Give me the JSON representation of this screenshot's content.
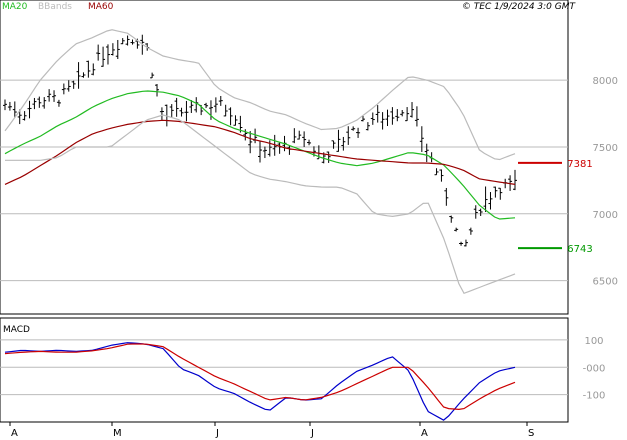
{
  "header": {
    "legend": [
      {
        "label": "MA20",
        "color": "#22bb22"
      },
      {
        "label": "BBands",
        "color": "#bbbbbb"
      },
      {
        "label": "MA60",
        "color": "#990000"
      }
    ],
    "copyright": "© TEC 1/9/2024 3:0 GMT"
  },
  "chart_data": [
    {
      "type": "line",
      "subtype": "ohlc-bar",
      "title": "",
      "x_labels": [
        "A",
        "M",
        "J",
        "J",
        "A",
        "S"
      ],
      "y_ticks": [
        6500,
        7000,
        7500,
        8000
      ],
      "ylim": [
        6250,
        8600
      ],
      "grid": true,
      "series": [
        {
          "name": "MA20",
          "color": "#22bb22",
          "values": [
            7450,
            7520,
            7580,
            7660,
            7720,
            7800,
            7860,
            7900,
            7920,
            7910,
            7880,
            7820,
            7700,
            7640,
            7600,
            7560,
            7520,
            7470,
            7420,
            7380,
            7360,
            7380,
            7420,
            7460,
            7440,
            7360,
            7220,
            7060,
            6960,
            6970
          ]
        },
        {
          "name": "MA60",
          "color": "#990000",
          "values": [
            7220,
            7280,
            7360,
            7440,
            7530,
            7600,
            7640,
            7670,
            7690,
            7700,
            7690,
            7670,
            7650,
            7610,
            7560,
            7530,
            7490,
            7470,
            7450,
            7430,
            7410,
            7400,
            7390,
            7380,
            7380,
            7370,
            7330,
            7260,
            7240,
            7220
          ]
        },
        {
          "name": "BB Upper",
          "color": "#bbbbbb",
          "values": [
            7620,
            7800,
            8000,
            8150,
            8270,
            8320,
            8380,
            8350,
            8250,
            8180,
            8150,
            8130,
            7950,
            7870,
            7830,
            7770,
            7740,
            7680,
            7630,
            7640,
            7700,
            7800,
            7920,
            8030,
            8000,
            7950,
            7760,
            7470,
            7400,
            7450
          ]
        },
        {
          "name": "BB Lower",
          "color": "#bbbbbb",
          "values": [
            7400,
            7400,
            7400,
            7420,
            7500,
            7500,
            7500,
            7600,
            7700,
            7740,
            7700,
            7600,
            7500,
            7400,
            7300,
            7260,
            7240,
            7210,
            7200,
            7200,
            7150,
            7000,
            6980,
            7000,
            7100,
            6800,
            6400,
            6450,
            6500,
            6550
          ]
        },
        {
          "name": "Close",
          "color": "#000000",
          "values": [
            7820,
            7750,
            7860,
            7860,
            7960,
            8120,
            8240,
            8320,
            8280,
            7720,
            7760,
            7790,
            7830,
            7760,
            7550,
            7470,
            7510,
            7570,
            7420,
            7530,
            7640,
            7720,
            7740,
            7800,
            7480,
            7190,
            6700,
            7050,
            7200,
            7220
          ]
        }
      ],
      "annotations": [
        {
          "label": "7381",
          "value": 7381,
          "color": "#cc0000"
        },
        {
          "label": "6743",
          "value": 6743,
          "color": "#009900"
        }
      ]
    },
    {
      "type": "line",
      "title": "MACD",
      "x_labels": [
        "A",
        "M",
        "J",
        "J",
        "A",
        "S"
      ],
      "y_ticks": [
        "100",
        "-000",
        "-100"
      ],
      "ylim": [
        -200,
        180
      ],
      "grid": true,
      "series": [
        {
          "name": "MACD",
          "color": "#0000cc",
          "values": [
            55,
            62,
            58,
            62,
            58,
            62,
            80,
            90,
            85,
            68,
            -5,
            -30,
            -75,
            -95,
            -130,
            -160,
            -110,
            -120,
            -115,
            -60,
            -15,
            10,
            40,
            -15,
            -160,
            -195,
            -120,
            -55,
            -15,
            0
          ]
        },
        {
          "name": "Signal",
          "color": "#cc0000",
          "values": [
            50,
            55,
            58,
            55,
            55,
            60,
            70,
            85,
            85,
            75,
            35,
            0,
            -35,
            -60,
            -90,
            -120,
            -110,
            -120,
            -110,
            -90,
            -60,
            -30,
            0,
            0,
            -70,
            -150,
            -155,
            -115,
            -80,
            -55
          ]
        }
      ]
    }
  ]
}
